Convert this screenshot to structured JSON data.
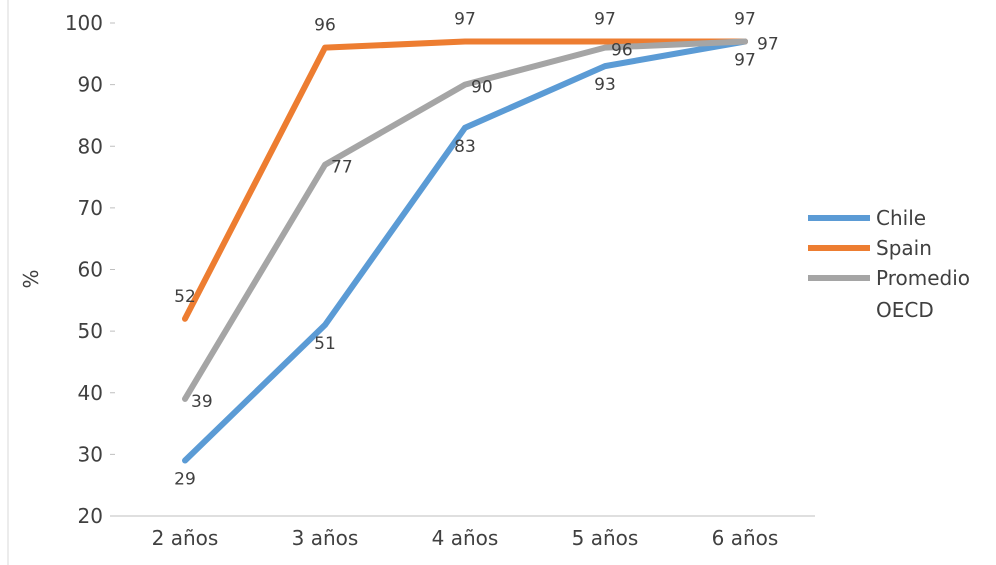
{
  "chart_data": {
    "type": "line",
    "title": "",
    "xlabel": "",
    "ylabel": "%",
    "categories": [
      "2 años",
      "3 años",
      "4 años",
      "5 años",
      "6 años"
    ],
    "ylim": [
      20,
      100
    ],
    "yticks": [
      20,
      30,
      40,
      50,
      60,
      70,
      80,
      90,
      100
    ],
    "grid": false,
    "legend_position": "right",
    "series": [
      {
        "name": "Chile",
        "values": [
          29,
          51,
          83,
          93,
          97
        ],
        "color": "#5B9BD5"
      },
      {
        "name": "Spain",
        "values": [
          52,
          96,
          97,
          97,
          97
        ],
        "color": "#ED7D31"
      },
      {
        "name": "Promedio OECD",
        "values": [
          39,
          77,
          90,
          96,
          97
        ],
        "color": "#A5A5A5"
      }
    ]
  }
}
